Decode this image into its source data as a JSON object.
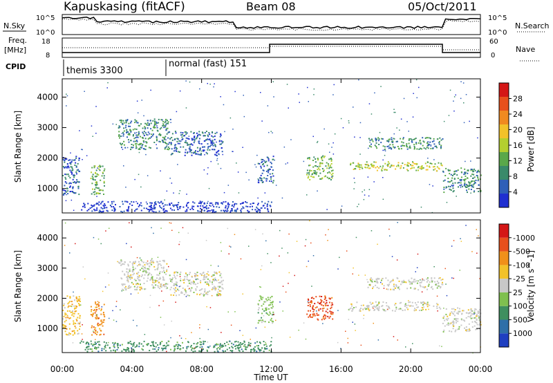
{
  "header": {
    "station": "Kapuskasing (fitACF)",
    "beam": "Beam 08",
    "date": "05/Oct/2011"
  },
  "strip_panels": {
    "nsky_label": "N.Sky",
    "nsky_ticks": [
      "10^5",
      "10^0"
    ],
    "nsearch_label": "N.Search",
    "nsearch_ticks": [
      "10^5",
      "10^0"
    ],
    "freq_label_line1": "Freq.",
    "freq_label_line2": "[MHz]",
    "freq_ticks": [
      "18",
      "8"
    ],
    "nave_label": "Nave",
    "nave_ticks": [
      "60",
      "0"
    ],
    "cpid_label": "CPID",
    "cpid_segments": [
      {
        "label": "themis 3300",
        "start_ut": 0.0
      },
      {
        "label": "normal (fast) 151",
        "start_ut": 6.0
      }
    ]
  },
  "x_axis": {
    "label": "Time UT",
    "ticks": [
      "00:00",
      "04:00",
      "08:00",
      "12:00",
      "16:00",
      "20:00",
      "00:00"
    ]
  },
  "chart_data": [
    {
      "type": "heatmap",
      "name": "power",
      "ylabel": "Slant Range [km]",
      "yticks": [
        "1000",
        "2000",
        "3000",
        "4000"
      ],
      "ylim": [
        200,
        4600
      ],
      "xlim": [
        0,
        24
      ],
      "colorbar_label": "Power [dB]",
      "colorbar_ticks": [
        "4",
        "8",
        "12",
        "16",
        "20",
        "24",
        "28"
      ],
      "colorbar_colors": [
        "#1f2fd0",
        "#2f5fb8",
        "#3a8a6a",
        "#5aa84a",
        "#b4cf30",
        "#f2c22a",
        "#f08a20",
        "#e8501c",
        "#d41616"
      ],
      "echo_regions": [
        {
          "t0": 0.0,
          "t1": 1.0,
          "r0": 800,
          "r1": 2100,
          "level": 2
        },
        {
          "t0": 1.6,
          "t1": 2.4,
          "r0": 800,
          "r1": 1800,
          "level": 4
        },
        {
          "t0": 3.2,
          "t1": 6.2,
          "r0": 2300,
          "r1": 3300,
          "level": 3
        },
        {
          "t0": 6.2,
          "t1": 9.2,
          "r0": 2100,
          "r1": 2900,
          "level": 2
        },
        {
          "t0": 11.2,
          "t1": 12.1,
          "r0": 1200,
          "r1": 2100,
          "level": 2
        },
        {
          "t0": 14.0,
          "t1": 15.5,
          "r0": 1300,
          "r1": 2100,
          "level": 4
        },
        {
          "t0": 16.4,
          "t1": 21.8,
          "r0": 1600,
          "r1": 1900,
          "level": 5
        },
        {
          "t0": 17.5,
          "t1": 21.8,
          "r0": 2300,
          "r1": 2700,
          "level": 3
        },
        {
          "t0": 21.8,
          "t1": 24.0,
          "r0": 900,
          "r1": 1700,
          "level": 3
        },
        {
          "t0": 1.0,
          "t1": 12.0,
          "r0": 250,
          "r1": 600,
          "level": 1
        }
      ]
    },
    {
      "type": "heatmap",
      "name": "velocity",
      "ylabel": "Slant Range [km]",
      "yticks": [
        "1000",
        "2000",
        "3000",
        "4000"
      ],
      "ylim": [
        200,
        4600
      ],
      "xlim": [
        0,
        24
      ],
      "colorbar_label": "Velocity [m s^-1]",
      "colorbar_ticks": [
        "1000",
        "500",
        "100",
        "25",
        "-25",
        "-100",
        "-500",
        "-1000"
      ],
      "colorbar_colors": [
        "#1f3fc0",
        "#2f6fa8",
        "#3f8f5f",
        "#7fc04f",
        "#c8c8c8",
        "#f2c22a",
        "#f0901a",
        "#e8501c",
        "#d41616"
      ],
      "echo_regions": [
        {
          "t0": 0.0,
          "t1": 1.0,
          "r0": 800,
          "r1": 2100,
          "vclass": -1
        },
        {
          "t0": 1.6,
          "t1": 2.4,
          "r0": 800,
          "r1": 1900,
          "vclass": -2
        },
        {
          "t0": 3.2,
          "t1": 6.2,
          "r0": 2300,
          "r1": 3300,
          "vclass": 0
        },
        {
          "t0": 6.2,
          "t1": 9.2,
          "r0": 2100,
          "r1": 2900,
          "vclass": 0
        },
        {
          "t0": 11.2,
          "t1": 12.1,
          "r0": 1200,
          "r1": 2100,
          "vclass": 1
        },
        {
          "t0": 14.0,
          "t1": 15.5,
          "r0": 1300,
          "r1": 2100,
          "vclass": -3
        },
        {
          "t0": 16.4,
          "t1": 21.8,
          "r0": 1600,
          "r1": 1900,
          "vclass": 0
        },
        {
          "t0": 17.5,
          "t1": 21.8,
          "r0": 2300,
          "r1": 2700,
          "vclass": 0
        },
        {
          "t0": 21.8,
          "t1": 24.0,
          "r0": 900,
          "r1": 1700,
          "vclass": 0
        },
        {
          "t0": 1.0,
          "t1": 12.0,
          "r0": 250,
          "r1": 600,
          "vclass": 2
        }
      ]
    }
  ]
}
